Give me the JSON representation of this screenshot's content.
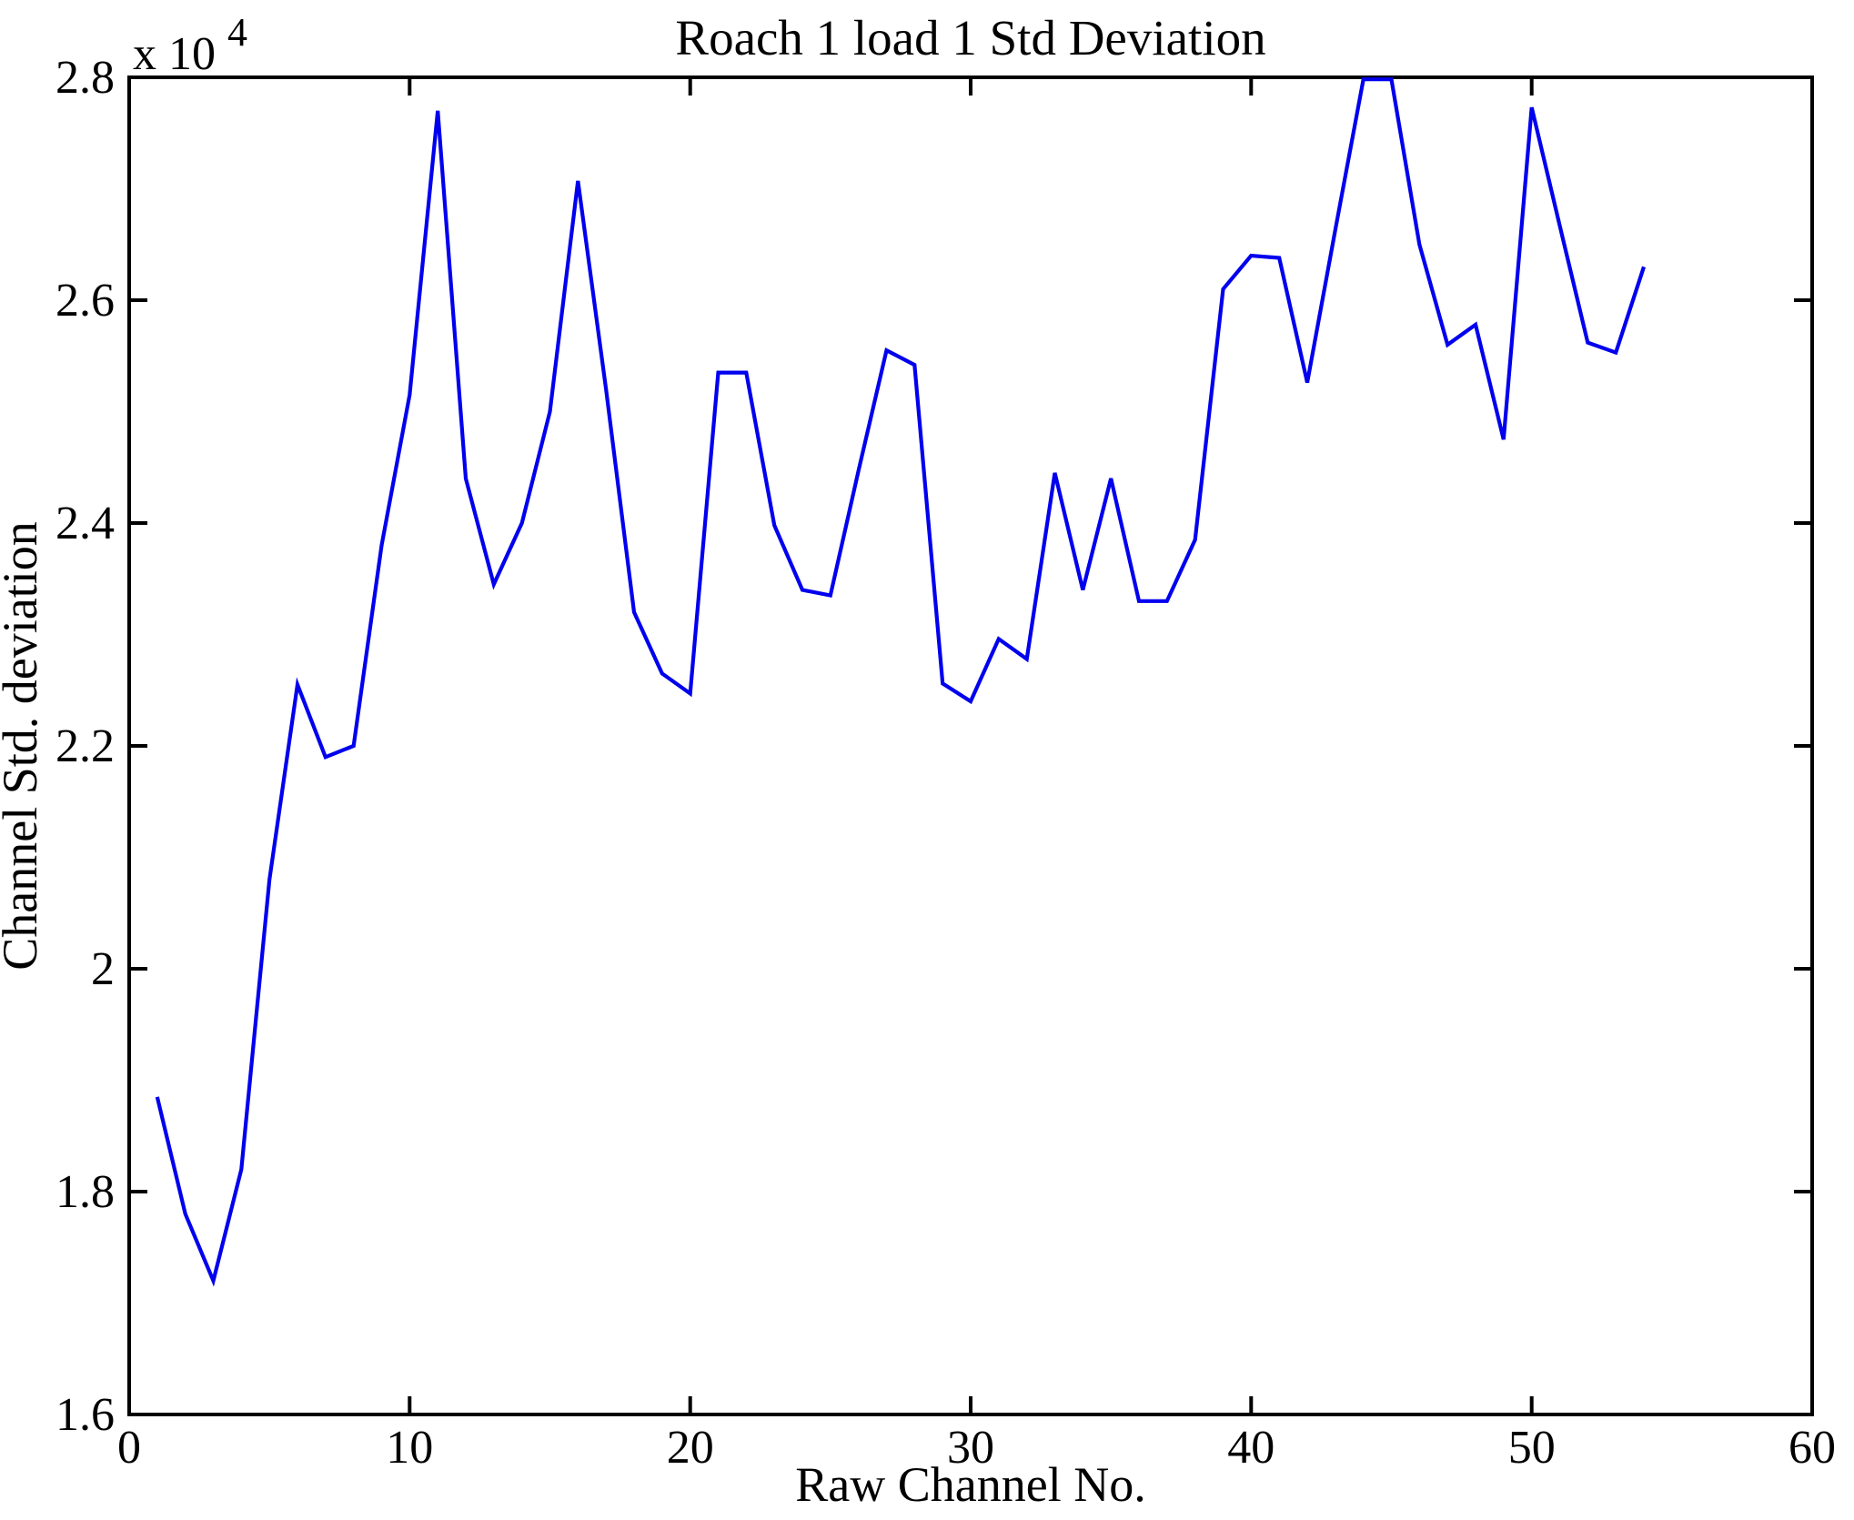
{
  "figure": {
    "title": "Roach 1 load 1 Std Deviation",
    "xlabel": "Raw Channel No.",
    "ylabel": "Channel Std. deviation",
    "y_multiplier_base": "x 10",
    "y_multiplier_exp": "4",
    "line_color": "#0000EE",
    "axis_color": "#000000",
    "background_color": "#FFFFFF"
  },
  "chart_data": {
    "type": "line",
    "title": "Roach 1 load 1 Std Deviation",
    "xlabel": "Raw Channel No.",
    "ylabel": "Channel Std. deviation",
    "y_axis_multiplier": "x 10^4",
    "grid": false,
    "legend": null,
    "line_color": "#0000EE",
    "xlim": [
      0,
      60
    ],
    "ylim": [
      16000,
      28000
    ],
    "xtick_values": [
      0,
      10,
      20,
      30,
      40,
      50,
      60
    ],
    "xtick_labels": [
      "0",
      "10",
      "20",
      "30",
      "40",
      "50",
      "60"
    ],
    "ytick_values": [
      16000,
      18000,
      20000,
      22000,
      24000,
      26000,
      28000
    ],
    "ytick_labels": [
      "1.6",
      "1.8",
      "2",
      "2.2",
      "2.4",
      "2.6",
      "2.8"
    ],
    "x": [
      1,
      2,
      3,
      4,
      5,
      6,
      7,
      8,
      9,
      10,
      11,
      12,
      13,
      14,
      15,
      16,
      17,
      18,
      19,
      20,
      21,
      22,
      23,
      24,
      25,
      26,
      27,
      28,
      29,
      30,
      31,
      32,
      33,
      34,
      35,
      36,
      37,
      38,
      39,
      40,
      41,
      42,
      43,
      44,
      45,
      46,
      47,
      48,
      49,
      50,
      51,
      52,
      53,
      54
    ],
    "values": [
      18850,
      17800,
      17200,
      18200,
      20800,
      22550,
      21900,
      22000,
      23800,
      25150,
      27700,
      24400,
      23450,
      24000,
      25000,
      27070,
      25200,
      23200,
      22650,
      22470,
      25350,
      25350,
      23980,
      23400,
      23350,
      24470,
      25550,
      25420,
      22560,
      22400,
      22960,
      22780,
      24450,
      23400,
      24400,
      23300,
      23300,
      23850,
      26100,
      26400,
      26380,
      25260,
      26630,
      28000,
      28000,
      26500,
      25600,
      25780,
      24750,
      27730,
      26670,
      25620,
      25530,
      26300
    ]
  }
}
